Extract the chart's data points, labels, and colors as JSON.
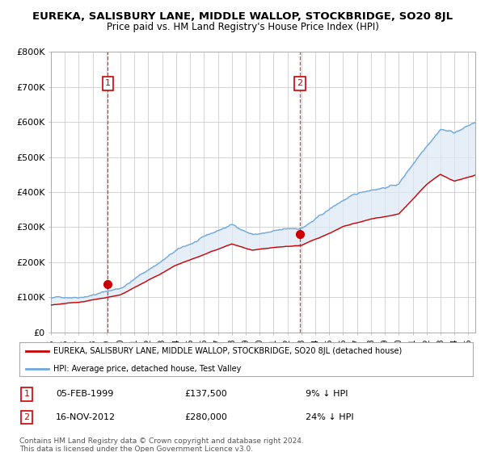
{
  "title": "EUREKA, SALISBURY LANE, MIDDLE WALLOP, STOCKBRIDGE, SO20 8JL",
  "subtitle": "Price paid vs. HM Land Registry's House Price Index (HPI)",
  "ylabel_ticks": [
    "£0",
    "£100K",
    "£200K",
    "£300K",
    "£400K",
    "£500K",
    "£600K",
    "£700K",
    "£800K"
  ],
  "ylim": [
    0,
    800000
  ],
  "xlim_start": 1995.0,
  "xlim_end": 2025.5,
  "hpi_color": "#6fa8dc",
  "hpi_fill_color": "#dce8f5",
  "price_color": "#cc0000",
  "purchase1_date": 1999.09,
  "purchase1_price": 137500,
  "purchase2_date": 2012.88,
  "purchase2_price": 280000,
  "legend_line1": "EUREKA, SALISBURY LANE, MIDDLE WALLOP, STOCKBRIDGE, SO20 8JL (detached house)",
  "legend_line2": "HPI: Average price, detached house, Test Valley",
  "table_row1": [
    "1",
    "05-FEB-1999",
    "£137,500",
    "9% ↓ HPI"
  ],
  "table_row2": [
    "2",
    "16-NOV-2012",
    "£280,000",
    "24% ↓ HPI"
  ],
  "footnote": "Contains HM Land Registry data © Crown copyright and database right 2024.\nThis data is licensed under the Open Government Licence v3.0.",
  "background_color": "#ffffff",
  "grid_color": "#cccccc"
}
